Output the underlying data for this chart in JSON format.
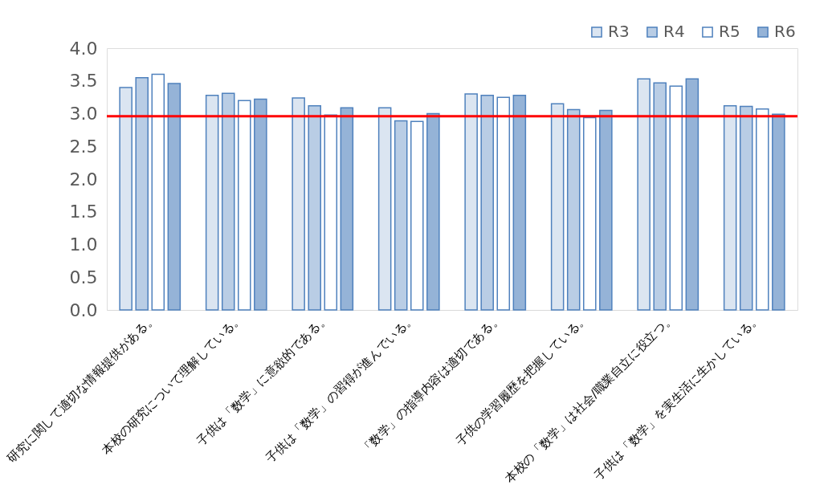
{
  "chart_data": {
    "type": "bar",
    "categories": [
      "研究に関して適切な情報提供がある。",
      "本校の研究について理解している。",
      "子供は「数学」に意欲的である。",
      "子供は「数学」の習得が進んでいる。",
      "「数学」の指導内容は適切である。",
      "子供の学習履歴を把握している。",
      "本校の「数学」は社会/職業自立に役立つ。",
      "子供は「数学」を実生活に生かしている。"
    ],
    "series": [
      {
        "name": "R3",
        "color": "#dbe5f1",
        "values": [
          3.4,
          3.28,
          3.24,
          3.09,
          3.3,
          3.15,
          3.53,
          3.12
        ]
      },
      {
        "name": "R4",
        "color": "#b9cde5",
        "values": [
          3.55,
          3.31,
          3.12,
          2.89,
          3.28,
          3.06,
          3.47,
          3.11
        ]
      },
      {
        "name": "R5",
        "color": "#ffffff",
        "values": [
          3.6,
          3.2,
          2.98,
          2.88,
          3.25,
          2.94,
          3.42,
          3.07
        ]
      },
      {
        "name": "R6",
        "color": "#95b3d7",
        "values": [
          3.46,
          3.22,
          3.09,
          3.0,
          3.28,
          3.05,
          3.53,
          2.99
        ]
      }
    ],
    "ylim": [
      0,
      4
    ],
    "yticks": [
      {
        "value": 0,
        "label": "0.0"
      },
      {
        "value": 0.5,
        "label": "0.5"
      },
      {
        "value": 1,
        "label": "1.0"
      },
      {
        "value": 1.5,
        "label": "1.5"
      },
      {
        "value": 2,
        "label": "2.0"
      },
      {
        "value": 2.5,
        "label": "2.5"
      },
      {
        "value": 3,
        "label": "3.0"
      },
      {
        "value": 3.5,
        "label": "3.5"
      },
      {
        "value": 4,
        "label": "4.0"
      }
    ],
    "ref_lines": [
      {
        "axis": "y",
        "value": 2.96,
        "label": null,
        "color": "#ff0000"
      }
    ],
    "grid": false,
    "legend": "top right"
  }
}
